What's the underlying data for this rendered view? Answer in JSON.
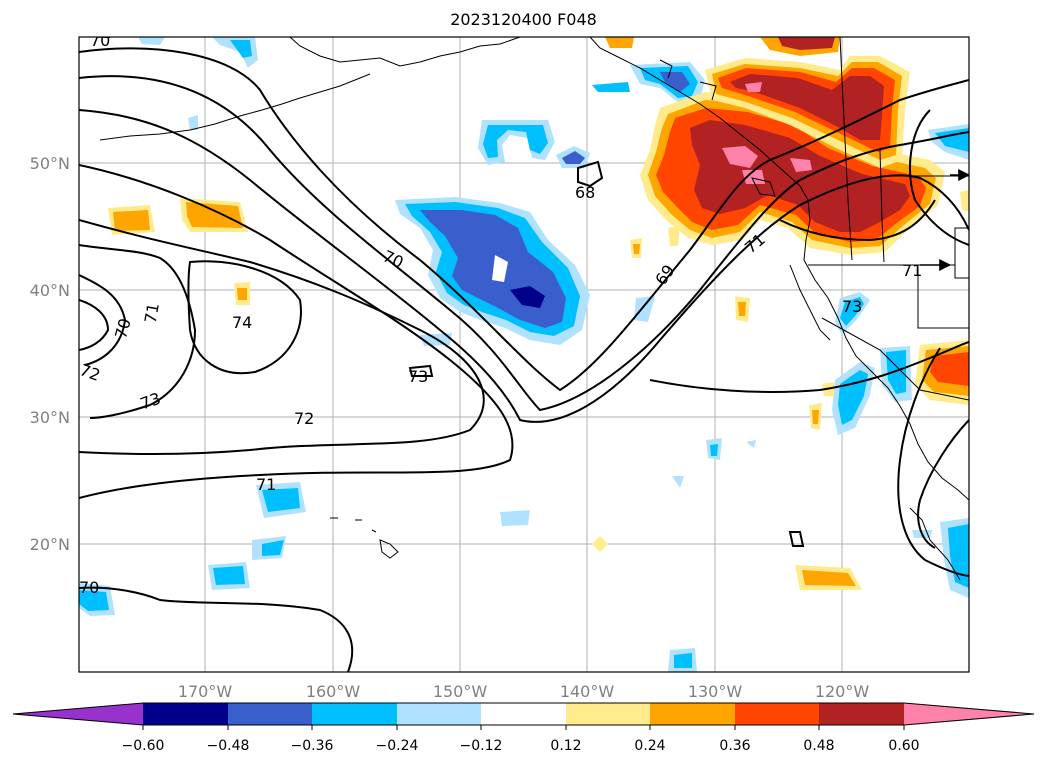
{
  "title": "2023120400 F048",
  "map": {
    "lat_labels": [
      "50°N",
      "40°N",
      "30°N",
      "20°N"
    ],
    "lon_labels": [
      "170°W",
      "160°W",
      "150°W",
      "140°W",
      "130°W",
      "120°W"
    ]
  },
  "colorbar": {
    "ticks": [
      "−0.60",
      "−0.48",
      "−0.36",
      "−0.24",
      "−0.12",
      "0.12",
      "0.24",
      "0.36",
      "0.48",
      "0.60"
    ],
    "colors": [
      "#9932cc",
      "#00008b",
      "#3a5fcd",
      "#00bfff",
      "#b0e2ff",
      "#ffffff",
      "#ffeb8c",
      "#ffa500",
      "#ff4500",
      "#b22222",
      "#ff82ab"
    ]
  },
  "contour_labels": [
    "70",
    "70",
    "71",
    "72",
    "73",
    "74",
    "70",
    "71",
    "72",
    "73",
    "69",
    "71",
    "68",
    "73",
    "70",
    "71"
  ]
}
